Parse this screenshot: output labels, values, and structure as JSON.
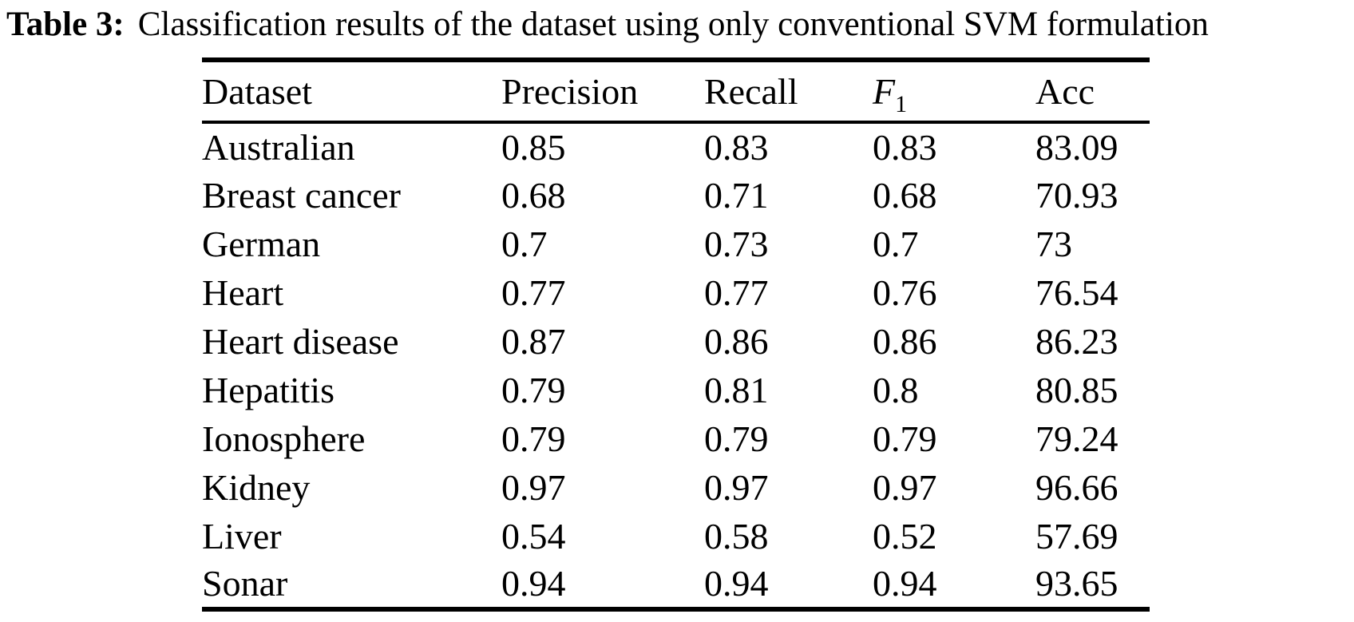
{
  "title": {
    "label": "Table 3:",
    "text": "Classification results of the dataset using only conventional SVM formulation"
  },
  "table": {
    "columns": [
      {
        "key": "dataset",
        "label": "Dataset"
      },
      {
        "key": "precision",
        "label": "Precision"
      },
      {
        "key": "recall",
        "label": "Recall"
      },
      {
        "key": "f1",
        "label": "F",
        "sublabel": "1",
        "italic": true
      },
      {
        "key": "acc",
        "label": "Acc"
      }
    ],
    "rows": [
      {
        "dataset": "Australian",
        "precision": "0.85",
        "recall": "0.83",
        "f1": "0.83",
        "acc": "83.09"
      },
      {
        "dataset": "Breast cancer",
        "precision": "0.68",
        "recall": "0.71",
        "f1": "0.68",
        "acc": "70.93"
      },
      {
        "dataset": "German",
        "precision": "0.7",
        "recall": "0.73",
        "f1": "0.7",
        "acc": "73"
      },
      {
        "dataset": "Heart",
        "precision": "0.77",
        "recall": "0.77",
        "f1": "0.76",
        "acc": "76.54"
      },
      {
        "dataset": "Heart disease",
        "precision": "0.87",
        "recall": "0.86",
        "f1": "0.86",
        "acc": "86.23"
      },
      {
        "dataset": "Hepatitis",
        "precision": "0.79",
        "recall": "0.81",
        "f1": "0.8",
        "acc": "80.85"
      },
      {
        "dataset": "Ionosphere",
        "precision": "0.79",
        "recall": "0.79",
        "f1": "0.79",
        "acc": "79.24"
      },
      {
        "dataset": "Kidney",
        "precision": "0.97",
        "recall": "0.97",
        "f1": "0.97",
        "acc": "96.66"
      },
      {
        "dataset": "Liver",
        "precision": "0.54",
        "recall": "0.58",
        "f1": "0.52",
        "acc": "57.69"
      },
      {
        "dataset": "Sonar",
        "precision": "0.94",
        "recall": "0.94",
        "f1": "0.94",
        "acc": "93.65"
      }
    ]
  },
  "chart_data": {
    "type": "table",
    "title": "Table 3: Classification results of the dataset using only conventional SVM formulation",
    "columns": [
      "Dataset",
      "Precision",
      "Recall",
      "F1",
      "Acc"
    ],
    "rows": [
      [
        "Australian",
        0.85,
        0.83,
        0.83,
        83.09
      ],
      [
        "Breast cancer",
        0.68,
        0.71,
        0.68,
        70.93
      ],
      [
        "German",
        0.7,
        0.73,
        0.7,
        73
      ],
      [
        "Heart",
        0.77,
        0.77,
        0.76,
        76.54
      ],
      [
        "Heart disease",
        0.87,
        0.86,
        0.86,
        86.23
      ],
      [
        "Hepatitis",
        0.79,
        0.81,
        0.8,
        80.85
      ],
      [
        "Ionosphere",
        0.79,
        0.79,
        0.79,
        79.24
      ],
      [
        "Kidney",
        0.97,
        0.97,
        0.97,
        96.66
      ],
      [
        "Liver",
        0.54,
        0.58,
        0.52,
        57.69
      ],
      [
        "Sonar",
        0.94,
        0.94,
        0.94,
        93.65
      ]
    ]
  }
}
